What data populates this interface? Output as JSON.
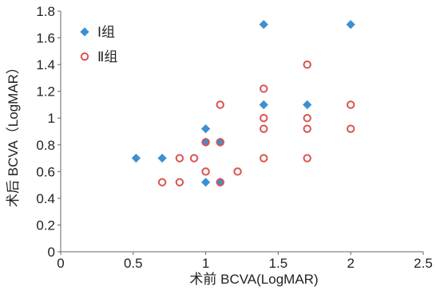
{
  "chart_data": {
    "type": "scatter",
    "title": "",
    "xlabel": "术前 BCVA(LogMAR)",
    "ylabel": "术后 BCVA（LogMAR）",
    "xlim": [
      0,
      2.5
    ],
    "ylim": [
      0,
      1.8
    ],
    "xticks": [
      0,
      0.5,
      1,
      1.5,
      2,
      2.5
    ],
    "xtick_labels": [
      "0",
      "0.5",
      "1",
      "1.5",
      "2",
      "2.5"
    ],
    "yticks": [
      0,
      0.2,
      0.4,
      0.6,
      0.8,
      1,
      1.2,
      1.4,
      1.6,
      1.8
    ],
    "ytick_labels": [
      "0",
      "0.2",
      "0.4",
      "0.6",
      "0.8",
      "1",
      "1.2",
      "1.4",
      "1.6",
      "1.8"
    ],
    "grid": false,
    "legend_position": "top-left",
    "series": [
      {
        "name": "Ⅰ组",
        "marker": "diamond",
        "color": "#3d8fd1",
        "points": [
          [
            0.52,
            0.7
          ],
          [
            0.7,
            0.7
          ],
          [
            1.0,
            0.92
          ],
          [
            1.0,
            0.82
          ],
          [
            1.0,
            0.52
          ],
          [
            1.1,
            0.82
          ],
          [
            1.1,
            0.52
          ],
          [
            1.4,
            1.7
          ],
          [
            1.4,
            1.1
          ],
          [
            1.7,
            1.1
          ],
          [
            2.0,
            1.7
          ]
        ]
      },
      {
        "name": "Ⅱ组",
        "marker": "open-circle",
        "color": "#d9534f",
        "points": [
          [
            0.7,
            0.52
          ],
          [
            0.82,
            0.7
          ],
          [
            0.82,
            0.52
          ],
          [
            0.92,
            0.7
          ],
          [
            1.0,
            0.82
          ],
          [
            1.0,
            0.6
          ],
          [
            1.1,
            1.1
          ],
          [
            1.1,
            0.82
          ],
          [
            1.1,
            0.52
          ],
          [
            1.22,
            0.6
          ],
          [
            1.4,
            1.22
          ],
          [
            1.4,
            1.0
          ],
          [
            1.4,
            0.92
          ],
          [
            1.4,
            0.7
          ],
          [
            1.7,
            1.4
          ],
          [
            1.7,
            1.0
          ],
          [
            1.7,
            0.92
          ],
          [
            1.7,
            0.7
          ],
          [
            2.0,
            1.1
          ],
          [
            2.0,
            0.92
          ]
        ]
      }
    ]
  }
}
